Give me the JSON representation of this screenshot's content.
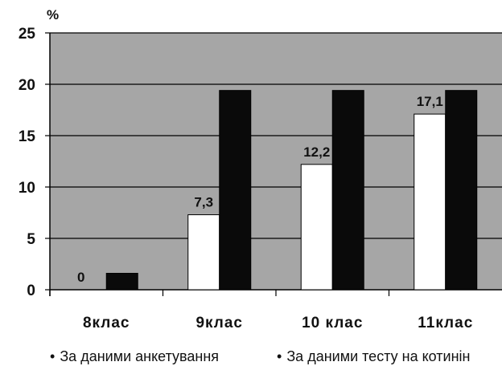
{
  "chart_data": {
    "type": "bar",
    "y_unit_label": "%",
    "categories": [
      "8клас",
      "9клас",
      "10 клас",
      "11клас"
    ],
    "series": [
      {
        "name": "За даними анкетування",
        "values": [
          0,
          7.3,
          12.2,
          17.1
        ],
        "color": "#ffffff",
        "data_labels": [
          "0",
          "7,3",
          "12,2",
          "17,1"
        ]
      },
      {
        "name": "За даними тесту на котинін",
        "values": [
          1.6,
          19.4,
          19.4,
          19.4
        ],
        "color": "#0a0a0a"
      }
    ],
    "ylim": [
      0,
      25
    ],
    "yticks": [
      0,
      5,
      10,
      15,
      20,
      25
    ],
    "grid": true,
    "plot_background": "#a6a6a6",
    "legend_position": "bottom"
  }
}
